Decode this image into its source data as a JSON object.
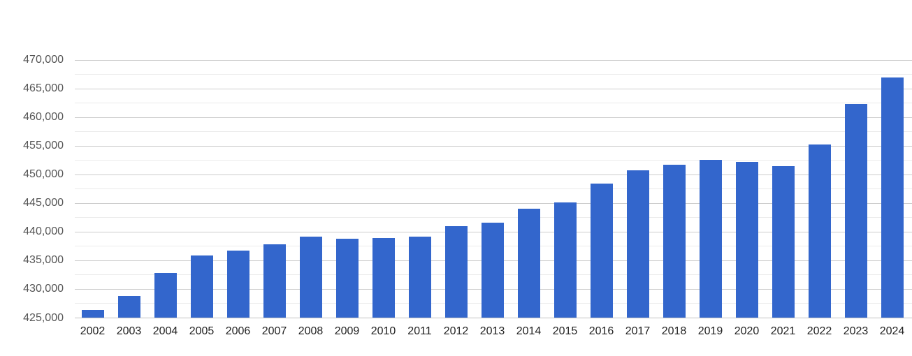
{
  "chart_data": {
    "type": "bar",
    "title": "",
    "xlabel": "",
    "ylabel": "",
    "categories": [
      "2002",
      "2003",
      "2004",
      "2005",
      "2006",
      "2007",
      "2008",
      "2009",
      "2010",
      "2011",
      "2012",
      "2013",
      "2014",
      "2015",
      "2016",
      "2017",
      "2018",
      "2019",
      "2020",
      "2021",
      "2022",
      "2023",
      "2024"
    ],
    "values": [
      426400,
      428800,
      432900,
      435900,
      436700,
      437800,
      439200,
      438800,
      439000,
      439200,
      441000,
      441600,
      444000,
      445100,
      448500,
      450800,
      451700,
      452600,
      452200,
      451500,
      455300,
      462300,
      467000
    ],
    "ylim": [
      425000,
      470000
    ],
    "y_major_step": 5000,
    "y_minor_step": 2500,
    "y_tick_labels": [
      "425,000",
      "430,000",
      "435,000",
      "440,000",
      "445,000",
      "450,000",
      "455,000",
      "460,000",
      "465,000",
      "470,000"
    ],
    "grid": true,
    "legend_position": "none",
    "colors": {
      "bar": "#3366cc",
      "major_gridline": "#cccccc",
      "minor_gridline": "#ebebeb",
      "axis_baseline": "#c2c2c2",
      "x_tick_text": "#222222",
      "y_tick_text": "#555555",
      "background": "#ffffff"
    }
  }
}
